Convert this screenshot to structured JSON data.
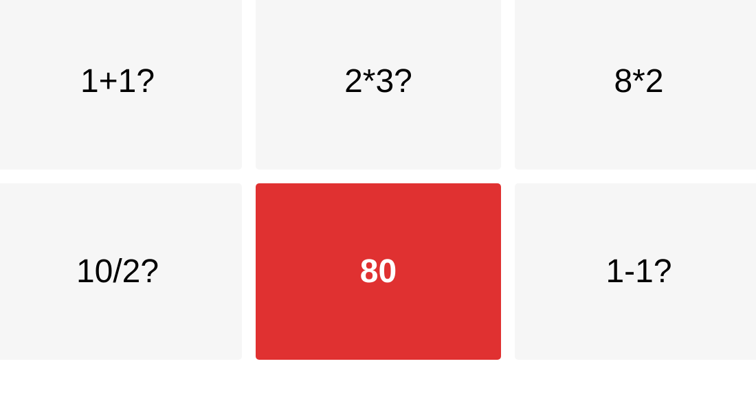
{
  "cards": [
    {
      "label": "1+1?",
      "state": "default"
    },
    {
      "label": "2*3?",
      "state": "default"
    },
    {
      "label": "8*2",
      "state": "default"
    },
    {
      "label": "10/2?",
      "state": "default"
    },
    {
      "label": "80",
      "state": "selected"
    },
    {
      "label": "1-1?",
      "state": "default"
    }
  ],
  "colors": {
    "card_background": "#f6f6f6",
    "selected_background": "#e03131",
    "text": "#000000",
    "selected_text": "#ffffff"
  }
}
